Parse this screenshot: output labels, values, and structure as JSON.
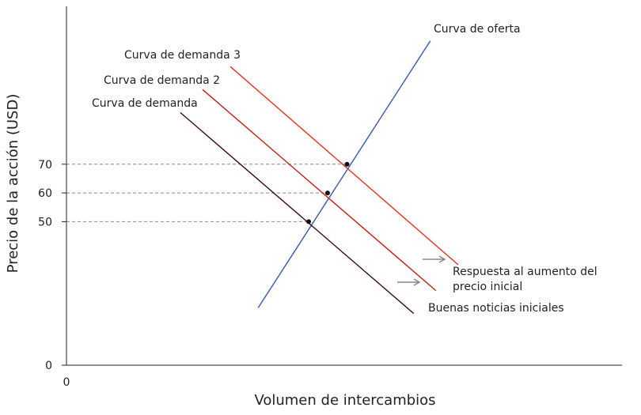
{
  "chart_data": {
    "type": "line",
    "xlabel": "Volumen de intercambios",
    "ylabel": "Precio de la acción (USD)",
    "x_origin_label": "0",
    "yticks": [
      {
        "value": 0,
        "label": "0"
      },
      {
        "value": 50,
        "label": "50"
      },
      {
        "value": 60,
        "label": "60"
      },
      {
        "value": 70,
        "label": "70"
      }
    ],
    "ylim": [
      0,
      125
    ],
    "xlim": [
      0,
      100
    ],
    "series": [
      {
        "name": "Curva de oferta",
        "color": "#3a56b0",
        "points": [
          [
            34.5,
            20
          ],
          [
            65.5,
            113
          ]
        ]
      },
      {
        "name": "Curva de demanda",
        "color": "#3b0a0a",
        "points": [
          [
            20.5,
            88
          ],
          [
            62.5,
            18
          ]
        ]
      },
      {
        "name": "Curva de demanda 2",
        "color": "#c41a12",
        "points": [
          [
            24.5,
            96
          ],
          [
            66.5,
            26
          ]
        ]
      },
      {
        "name": "Curva de demanda 3",
        "color": "#e8311f",
        "points": [
          [
            29.5,
            104
          ],
          [
            70.5,
            35
          ]
        ]
      }
    ],
    "equilibria": [
      {
        "x": 43.6,
        "y": 50
      },
      {
        "x": 47.0,
        "y": 60
      },
      {
        "x": 50.5,
        "y": 70
      }
    ],
    "annotations": [
      {
        "id": "respuesta",
        "text_line1": "Respuesta al aumento del",
        "text_line2": "precio inicial"
      },
      {
        "id": "buenas",
        "text": "Buenas noticias iniciales"
      }
    ],
    "colors": {
      "axis": "#222222",
      "guide": "#888888",
      "arrow": "#888888",
      "point": "#111111"
    },
    "grid": false,
    "legend": "none"
  }
}
